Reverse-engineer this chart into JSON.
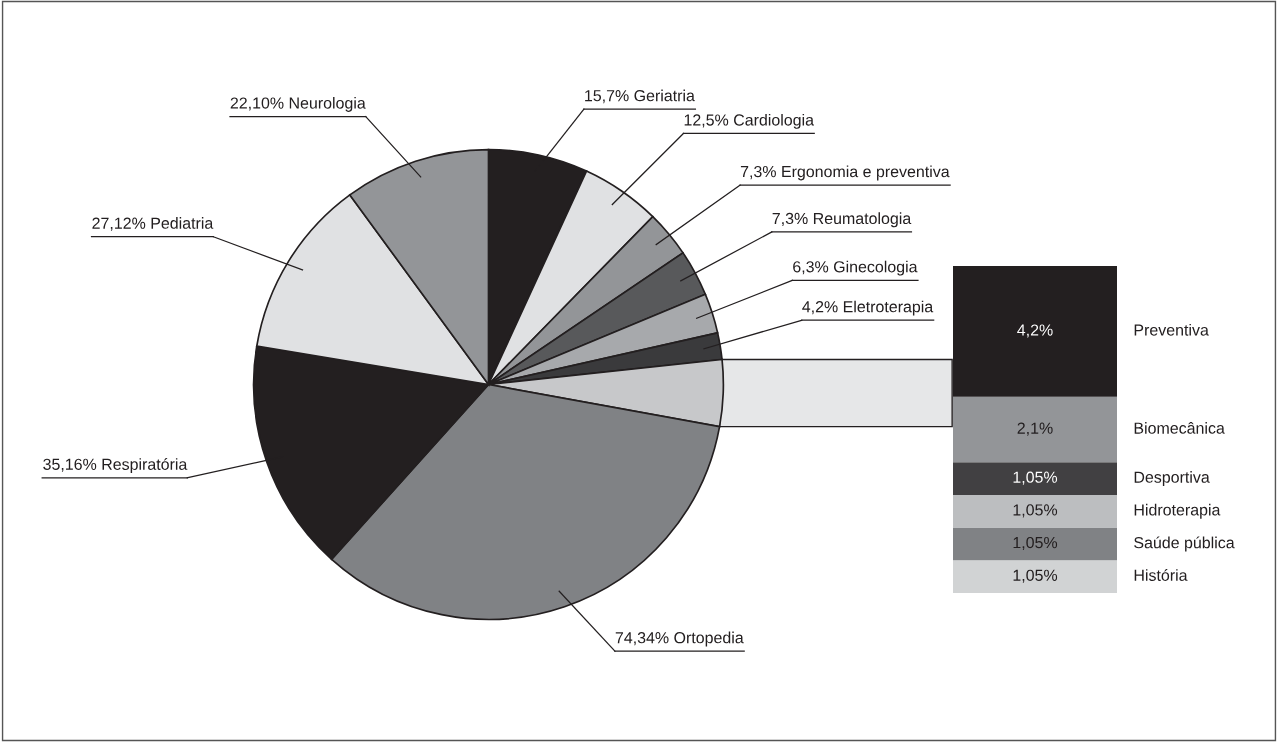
{
  "chart_data": [
    {
      "type": "pie",
      "categories": [
        "15,7% Geriatria",
        "12,5% Cardiologia",
        "7,3% Ergonomia e preventiva",
        "7,3% Reumatologia",
        "6,3% Ginecologia",
        "4,2% Eletroterapia",
        null,
        "74,34% Ortopedia",
        "35,16% Respiratória",
        "27,12% Pediatria",
        "22,10% Neurologia"
      ],
      "values": [
        6.85,
        5.48,
        3.2,
        3.2,
        2.74,
        1.83,
        4.57,
        33.77,
        15.98,
        12.33,
        10.05
      ],
      "colors": [
        "#231f20",
        "#e0e1e3",
        "#939598",
        "#58595b",
        "#a7a9ac",
        "#3a3a3c",
        "#c7c8ca",
        "#808285",
        "#231f20",
        "#e0e1e3",
        "#939598"
      ]
    },
    {
      "type": "bar",
      "stacked": true,
      "categories": [
        null
      ],
      "series": [
        {
          "name": "História",
          "color": "#d1d3d4",
          "values": [
            1.05
          ],
          "value_labels": [
            "1,05%"
          ]
        },
        {
          "name": "Saúde pública",
          "color": "#808285",
          "values": [
            1.05
          ],
          "value_labels": [
            "1,05%"
          ]
        },
        {
          "name": "Hidroterapia",
          "color": "#bcbec0",
          "values": [
            1.05
          ],
          "value_labels": [
            "1,05%"
          ]
        },
        {
          "name": "Desportiva",
          "color": "#414042",
          "values": [
            1.05
          ],
          "value_labels": [
            "1,05%"
          ]
        },
        {
          "name": "Biomecânica",
          "color": "#939598",
          "values": [
            2.1
          ],
          "value_labels": [
            "2,1%"
          ]
        },
        {
          "name": "Preventiva",
          "color": "#231f20",
          "values": [
            4.2
          ],
          "value_labels": [
            "4,2%"
          ]
        }
      ]
    }
  ]
}
